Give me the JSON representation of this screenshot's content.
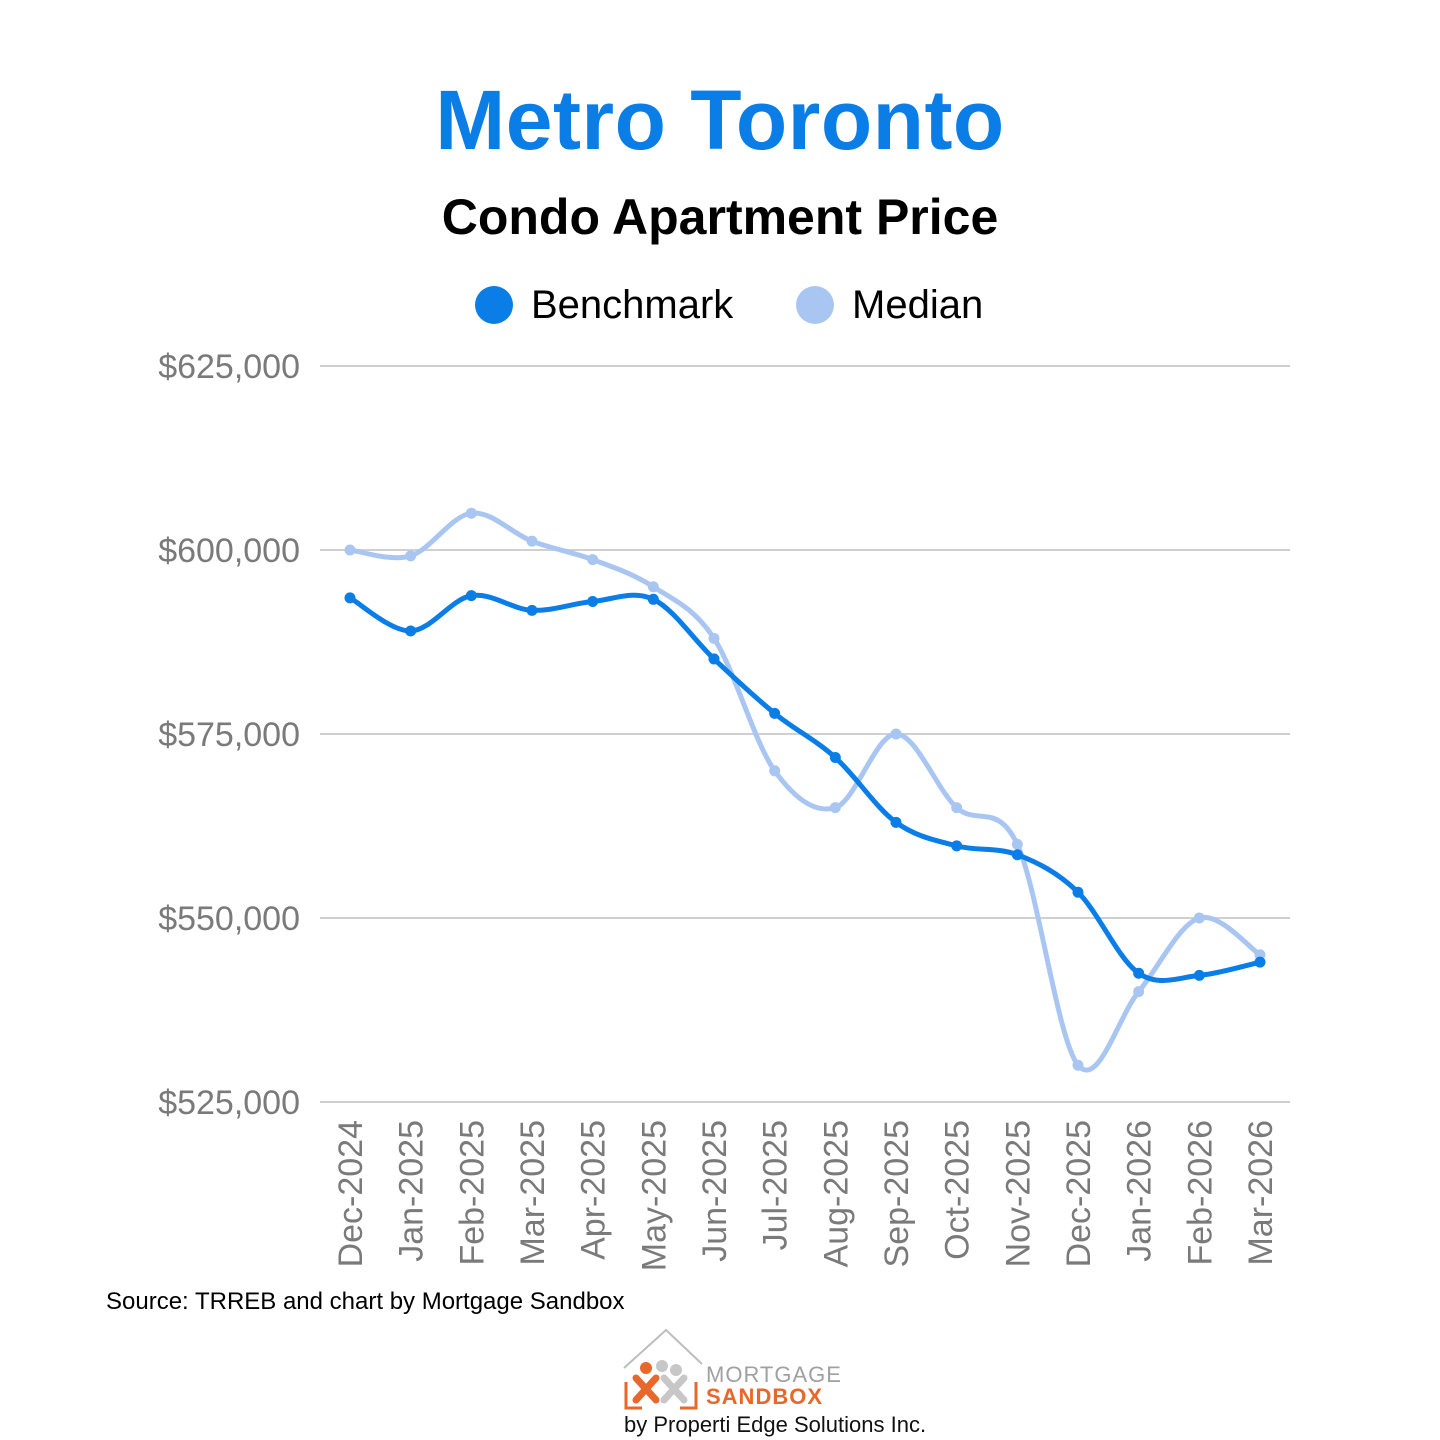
{
  "header": {
    "title": "Metro Toronto",
    "subtitle": "Condo Apartment Price"
  },
  "colors": {
    "title": "#0a7de6",
    "benchmark": "#0a7de6",
    "median": "#a9c6f3",
    "grid": "#d0d0d0",
    "axis_text": "#7a7a7a",
    "logo_orange": "#e8672a",
    "logo_gray": "#a0a0a0"
  },
  "chart_data": {
    "type": "line",
    "title": "Condo Apartment Price",
    "xlabel": "",
    "ylabel": "",
    "categories": [
      "Dec-2024",
      "Jan-2025",
      "Feb-2025",
      "Mar-2025",
      "Apr-2025",
      "May-2025",
      "Jun-2025",
      "Jul-2025",
      "Aug-2025",
      "Sep-2025",
      "Oct-2025",
      "Nov-2025",
      "Dec-2025",
      "Jan-2026",
      "Feb-2026",
      "Mar-2026"
    ],
    "series": [
      {
        "name": "Benchmark",
        "values": [
          593500,
          589000,
          593800,
          591800,
          593000,
          593300,
          585200,
          577800,
          571800,
          563000,
          559800,
          558600,
          553500,
          542500,
          542200,
          544000
        ]
      },
      {
        "name": "Median",
        "values": [
          600000,
          599200,
          605000,
          601200,
          598700,
          595000,
          588000,
          570000,
          565000,
          575000,
          565000,
          560000,
          530000,
          540000,
          550000,
          545000
        ]
      }
    ],
    "ylim": [
      525000,
      625000
    ],
    "yticks": [
      525000,
      550000,
      575000,
      600000,
      625000
    ],
    "ytick_labels": [
      "$525,000",
      "$550,000",
      "$575,000",
      "$600,000",
      "$625,000"
    ],
    "grid": true,
    "legend": "top-center"
  },
  "footer": {
    "source": "Source: TRREB and chart by Mortgage Sandbox"
  },
  "logo": {
    "line1": "MORTGAGE",
    "line2": "SANDBOX",
    "byline": "by Properti Edge Solutions Inc."
  }
}
